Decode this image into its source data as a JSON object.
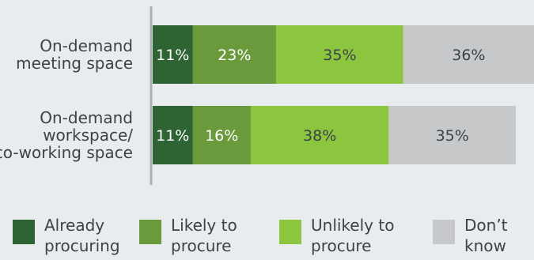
{
  "chart_data": {
    "type": "bar",
    "orientation": "horizontal",
    "stacked": true,
    "categories": [
      [
        "On-demand",
        "meeting space"
      ],
      [
        "On-demand",
        "workspace/",
        "co-working space"
      ]
    ],
    "series": [
      {
        "name": [
          "Already",
          "procuring"
        ],
        "color": "#2e6433",
        "label_color": "#ffffff",
        "values": [
          11,
          11
        ],
        "labels": [
          "11%",
          "11%"
        ]
      },
      {
        "name": [
          "Likely to",
          "procure"
        ],
        "color": "#6a9a3c",
        "label_color": "#ffffff",
        "values": [
          23,
          16
        ],
        "labels": [
          "23%",
          "16%"
        ]
      },
      {
        "name": [
          "Unlikely to",
          "procure"
        ],
        "color": "#8cc63f",
        "label_color": "#3c4248",
        "values": [
          35,
          38
        ],
        "labels": [
          "35%",
          "38%"
        ]
      },
      {
        "name": [
          "Don’t",
          "know"
        ],
        "color": "#c7c8ca",
        "label_color": "#3c4248",
        "values": [
          36,
          35
        ],
        "labels": [
          "36%",
          "35%"
        ]
      }
    ],
    "xlim": [
      0,
      105
    ],
    "grid": false,
    "legend_position": "bottom"
  }
}
